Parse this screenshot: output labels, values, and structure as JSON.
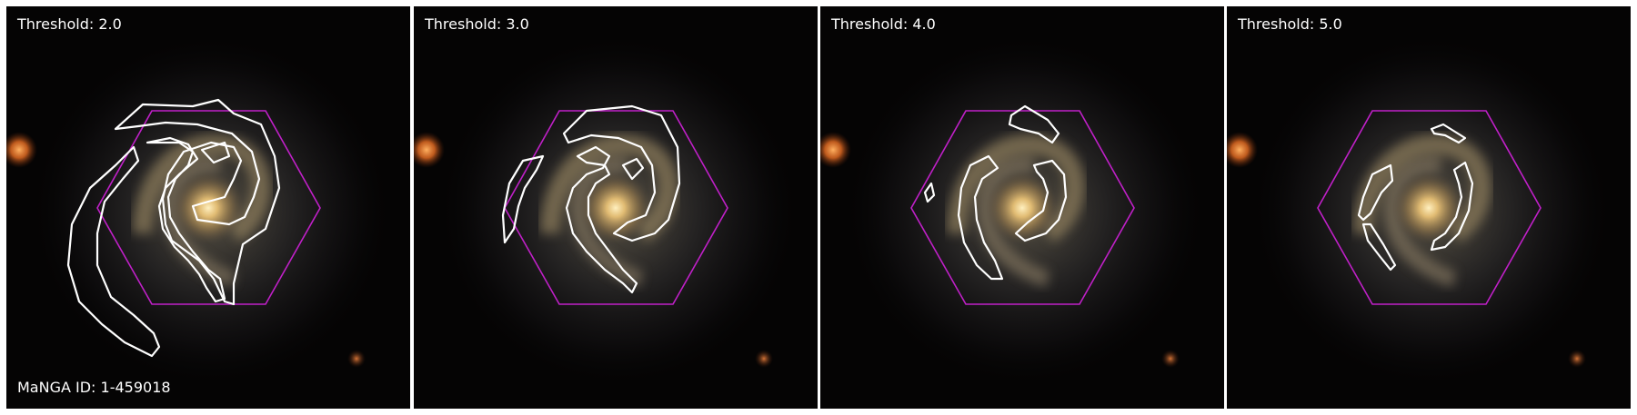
{
  "panels": [
    {
      "label": "Threshold: 2.0"
    },
    {
      "label": "Threshold: 3.0"
    },
    {
      "label": "Threshold: 4.0"
    },
    {
      "label": "Threshold: 5.0"
    }
  ],
  "manga_id": "MaNGA ID: 1-459018",
  "colors": {
    "background": "#050404",
    "hexagon": "#c020c8",
    "contour": "#ffffff",
    "galaxy_core": "#f3d18a",
    "foreground_star": "#e8782a"
  }
}
